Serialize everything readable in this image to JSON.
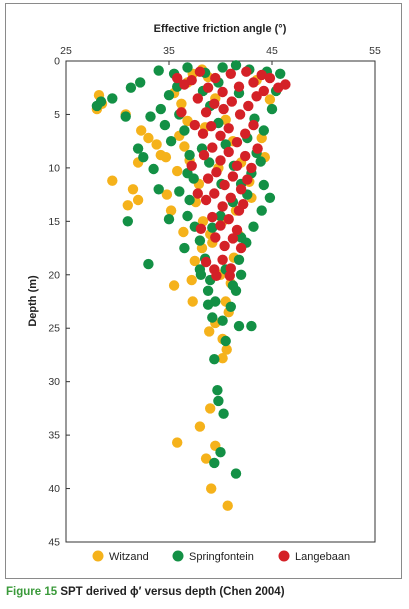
{
  "chart_data": {
    "type": "scatter",
    "title": "Effective friction angle (°)",
    "xlabel": "Effective friction angle (°)",
    "ylabel": "Depth (m)",
    "xlim": [
      25,
      55
    ],
    "ylim": [
      0,
      45
    ],
    "x_ticks": [
      "25",
      "35",
      "45",
      "55"
    ],
    "y_ticks": [
      "0",
      "5",
      "10",
      "15",
      "20",
      "25",
      "30",
      "35",
      "40",
      "45"
    ],
    "y_inverted": true,
    "x_axis_position": "top",
    "grid": false,
    "legend_position": "bottom",
    "series": [
      {
        "name": "Witzand",
        "color": "#f5b21b",
        "points": [
          [
            28.2,
            3.2
          ],
          [
            28.0,
            4.5
          ],
          [
            28.5,
            4.0
          ],
          [
            30.8,
            5.0
          ],
          [
            32.3,
            6.5
          ],
          [
            33.0,
            7.2
          ],
          [
            33.8,
            7.8
          ],
          [
            34.2,
            8.8
          ],
          [
            34.7,
            9.0
          ],
          [
            32.0,
            9.5
          ],
          [
            29.5,
            11.2
          ],
          [
            31.5,
            12.0
          ],
          [
            35.8,
            10.3
          ],
          [
            37.0,
            9.3
          ],
          [
            36.5,
            8.0
          ],
          [
            36.0,
            7.0
          ],
          [
            36.2,
            4.0
          ],
          [
            35.5,
            3.0
          ],
          [
            36.8,
            2.0
          ],
          [
            37.3,
            1.2
          ],
          [
            38.2,
            0.8
          ],
          [
            38.8,
            1.5
          ],
          [
            39.5,
            3.5
          ],
          [
            40.5,
            5.5
          ],
          [
            41.2,
            7.5
          ],
          [
            42.0,
            9.5
          ],
          [
            42.8,
            11.3
          ],
          [
            43.5,
            1.8
          ],
          [
            44.8,
            3.6
          ],
          [
            44.0,
            7.2
          ],
          [
            44.3,
            9.0
          ],
          [
            43.0,
            12.8
          ],
          [
            41.5,
            14.0
          ],
          [
            40.2,
            15.0
          ],
          [
            39.0,
            16.2
          ],
          [
            38.2,
            17.5
          ],
          [
            37.5,
            18.7
          ],
          [
            40.0,
            20.0
          ],
          [
            41.0,
            20.8
          ],
          [
            40.5,
            22.5
          ],
          [
            40.8,
            23.5
          ],
          [
            39.5,
            24.5
          ],
          [
            38.9,
            25.3
          ],
          [
            40.2,
            26.0
          ],
          [
            40.6,
            27.0
          ],
          [
            40.2,
            27.8
          ],
          [
            34.8,
            12.5
          ],
          [
            35.2,
            14.0
          ],
          [
            37.6,
            13.2
          ],
          [
            38.3,
            15.0
          ],
          [
            36.4,
            16.0
          ],
          [
            32.0,
            13.0
          ],
          [
            31.0,
            13.5
          ],
          [
            35.5,
            21.0
          ],
          [
            37.3,
            22.5
          ],
          [
            39.0,
            32.5
          ],
          [
            38.0,
            34.2
          ],
          [
            35.8,
            35.7
          ],
          [
            38.6,
            37.2
          ],
          [
            39.1,
            40.0
          ],
          [
            40.7,
            41.6
          ],
          [
            39.5,
            36.0
          ],
          [
            37.2,
            20.5
          ],
          [
            41.3,
            18.4
          ],
          [
            36.8,
            5.6
          ],
          [
            37.9,
            11.5
          ],
          [
            39.8,
            10.0
          ],
          [
            38.5,
            6.2
          ],
          [
            39.2,
            17.0
          ],
          [
            41.8,
            16.3
          ]
        ]
      },
      {
        "name": "Springfontein",
        "color": "#139045",
        "points": [
          [
            28.0,
            4.2
          ],
          [
            28.4,
            3.8
          ],
          [
            29.5,
            3.5
          ],
          [
            31.3,
            2.5
          ],
          [
            32.2,
            2.0
          ],
          [
            30.8,
            5.2
          ],
          [
            34.0,
            0.9
          ],
          [
            35.5,
            1.2
          ],
          [
            36.8,
            0.6
          ],
          [
            38.5,
            1.1
          ],
          [
            40.2,
            0.6
          ],
          [
            41.5,
            0.4
          ],
          [
            42.8,
            0.8
          ],
          [
            44.5,
            1.0
          ],
          [
            45.8,
            1.2
          ],
          [
            45.4,
            2.8
          ],
          [
            45.0,
            4.5
          ],
          [
            44.2,
            6.5
          ],
          [
            43.5,
            8.6
          ],
          [
            43.0,
            10.5
          ],
          [
            44.2,
            11.6
          ],
          [
            44.8,
            12.8
          ],
          [
            44.0,
            14.0
          ],
          [
            43.2,
            15.5
          ],
          [
            42.5,
            17.0
          ],
          [
            41.8,
            18.6
          ],
          [
            42.0,
            20.0
          ],
          [
            41.5,
            21.5
          ],
          [
            41.0,
            23.0
          ],
          [
            43.0,
            24.8
          ],
          [
            41.8,
            24.8
          ],
          [
            40.5,
            26.2
          ],
          [
            39.4,
            27.9
          ],
          [
            39.7,
            30.8
          ],
          [
            39.8,
            31.8
          ],
          [
            40.3,
            33.0
          ],
          [
            40.0,
            36.6
          ],
          [
            39.4,
            37.6
          ],
          [
            41.5,
            38.6
          ],
          [
            34.0,
            12.0
          ],
          [
            33.5,
            10.1
          ],
          [
            32.5,
            9.0
          ],
          [
            32.0,
            8.2
          ],
          [
            33.2,
            5.2
          ],
          [
            34.2,
            4.5
          ],
          [
            35.0,
            3.2
          ],
          [
            36.0,
            5.0
          ],
          [
            36.5,
            6.5
          ],
          [
            35.2,
            7.5
          ],
          [
            37.0,
            8.8
          ],
          [
            36.8,
            10.5
          ],
          [
            37.0,
            13.0
          ],
          [
            36.8,
            14.5
          ],
          [
            37.5,
            15.5
          ],
          [
            38.0,
            16.8
          ],
          [
            36.5,
            17.5
          ],
          [
            38.5,
            18.5
          ],
          [
            38.0,
            19.5
          ],
          [
            39.0,
            20.5
          ],
          [
            38.8,
            21.5
          ],
          [
            39.5,
            22.5
          ],
          [
            39.2,
            24.0
          ],
          [
            40.2,
            24.3
          ],
          [
            38.8,
            22.8
          ],
          [
            38.3,
            2.8
          ],
          [
            39.0,
            4.2
          ],
          [
            39.8,
            5.8
          ],
          [
            40.5,
            7.8
          ],
          [
            41.3,
            9.8
          ],
          [
            42.0,
            11.5
          ],
          [
            42.6,
            12.5
          ],
          [
            41.2,
            13.2
          ],
          [
            40.0,
            14.5
          ],
          [
            39.2,
            15.6
          ],
          [
            38.1,
            20.0
          ],
          [
            31.0,
            15.0
          ],
          [
            33.0,
            19.0
          ],
          [
            35.0,
            14.8
          ],
          [
            36.0,
            12.2
          ],
          [
            37.4,
            11.0
          ],
          [
            38.2,
            8.2
          ],
          [
            38.9,
            9.5
          ],
          [
            40.1,
            11.5
          ],
          [
            42.0,
            16.5
          ],
          [
            40.5,
            19.5
          ],
          [
            41.2,
            21.0
          ],
          [
            34.6,
            6.0
          ],
          [
            35.8,
            2.4
          ],
          [
            39.8,
            2.0
          ],
          [
            41.8,
            3.0
          ],
          [
            43.3,
            5.4
          ],
          [
            42.6,
            7.2
          ],
          [
            43.9,
            9.4
          ]
        ]
      },
      {
        "name": "Langebaan",
        "color": "#d42127",
        "points": [
          [
            36.5,
            2.2
          ],
          [
            37.2,
            1.8
          ],
          [
            38.0,
            1.0
          ],
          [
            38.8,
            2.5
          ],
          [
            39.5,
            1.6
          ],
          [
            40.2,
            2.9
          ],
          [
            41.0,
            1.2
          ],
          [
            41.8,
            2.4
          ],
          [
            42.5,
            1.0
          ],
          [
            43.2,
            2.0
          ],
          [
            44.0,
            1.3
          ],
          [
            44.8,
            1.6
          ],
          [
            45.6,
            2.5
          ],
          [
            46.3,
            2.2
          ],
          [
            37.8,
            3.5
          ],
          [
            38.6,
            4.8
          ],
          [
            39.4,
            4.0
          ],
          [
            40.3,
            4.5
          ],
          [
            41.1,
            3.8
          ],
          [
            41.9,
            5.0
          ],
          [
            42.7,
            4.2
          ],
          [
            43.5,
            3.3
          ],
          [
            37.5,
            6.0
          ],
          [
            38.3,
            6.8
          ],
          [
            39.1,
            6.1
          ],
          [
            40.0,
            7.0
          ],
          [
            40.8,
            6.3
          ],
          [
            41.6,
            7.6
          ],
          [
            42.4,
            6.8
          ],
          [
            43.2,
            6.0
          ],
          [
            38.4,
            8.8
          ],
          [
            39.2,
            8.1
          ],
          [
            40.0,
            9.3
          ],
          [
            40.8,
            8.5
          ],
          [
            41.6,
            9.8
          ],
          [
            42.4,
            8.9
          ],
          [
            43.0,
            10.0
          ],
          [
            38.8,
            11.0
          ],
          [
            39.6,
            10.4
          ],
          [
            40.4,
            11.6
          ],
          [
            41.2,
            10.8
          ],
          [
            42.0,
            12.0
          ],
          [
            42.6,
            11.1
          ],
          [
            38.6,
            13.0
          ],
          [
            39.4,
            12.4
          ],
          [
            40.2,
            13.6
          ],
          [
            41.0,
            12.8
          ],
          [
            41.8,
            14.0
          ],
          [
            39.2,
            14.6
          ],
          [
            40.0,
            15.4
          ],
          [
            40.8,
            14.8
          ],
          [
            41.6,
            15.8
          ],
          [
            39.5,
            16.5
          ],
          [
            40.4,
            17.3
          ],
          [
            41.2,
            16.6
          ],
          [
            42.0,
            17.5
          ],
          [
            38.6,
            18.8
          ],
          [
            39.4,
            19.5
          ],
          [
            40.2,
            18.6
          ],
          [
            41.0,
            19.4
          ],
          [
            39.6,
            20.1
          ],
          [
            40.9,
            20.1
          ],
          [
            36.2,
            4.8
          ],
          [
            35.8,
            1.6
          ],
          [
            44.2,
            2.8
          ],
          [
            43.6,
            8.2
          ],
          [
            37.2,
            9.8
          ],
          [
            37.8,
            12.4
          ],
          [
            38.1,
            15.7
          ],
          [
            42.2,
            13.4
          ]
        ]
      }
    ]
  },
  "caption": {
    "figure_number": "Figure 15",
    "text": "SPT derived ϕ′ versus depth (Chen 2004)"
  }
}
